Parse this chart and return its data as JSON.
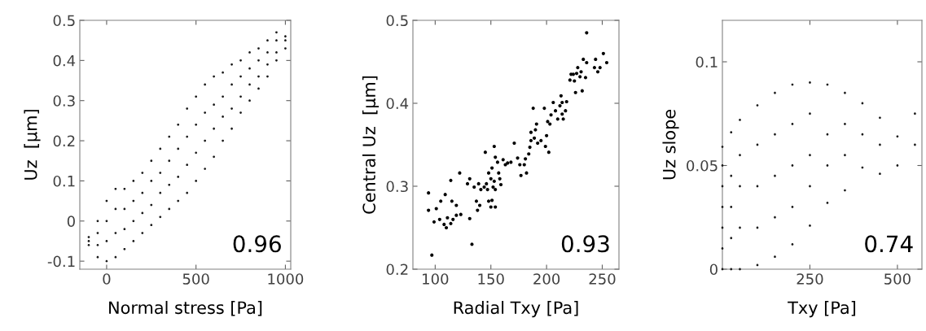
{
  "chart_data": [
    {
      "type": "scatter",
      "xlabel": "Normal stress [Pa]",
      "ylabel": "Uz  [µm]",
      "annotations": [
        "0.96"
      ],
      "marker": "circle",
      "grid": false,
      "xlim": [
        -150,
        1030
      ],
      "ylim": [
        -0.12,
        0.5
      ],
      "xticks": [
        0,
        500,
        1000
      ],
      "yticks": [
        -0.1,
        0,
        0.1,
        0.2,
        0.3,
        0.4,
        0.5
      ],
      "x": [
        -100,
        -100,
        -100,
        -50,
        -50,
        -50,
        -50,
        0,
        0,
        0,
        0,
        50,
        50,
        50,
        50,
        100,
        100,
        100,
        100,
        150,
        150,
        150,
        150,
        200,
        200,
        200,
        200,
        250,
        250,
        250,
        250,
        300,
        300,
        300,
        300,
        350,
        350,
        350,
        350,
        400,
        400,
        400,
        400,
        450,
        450,
        450,
        450,
        500,
        500,
        500,
        500,
        550,
        550,
        550,
        550,
        600,
        600,
        600,
        600,
        650,
        650,
        650,
        650,
        700,
        700,
        700,
        700,
        750,
        750,
        750,
        750,
        800,
        800,
        800,
        800,
        850,
        850,
        850,
        850,
        900,
        900,
        900,
        900,
        950,
        950,
        950,
        950,
        1000,
        1000,
        1000
      ],
      "series": [
        {
          "color": "#1a1a1a",
          "values": [
            -0.06,
            -0.05,
            -0.04,
            -0.09,
            -0.06,
            -0.03,
            0.0,
            -0.1,
            -0.05,
            0.0,
            0.05,
            -0.09,
            -0.03,
            0.03,
            0.08,
            -0.07,
            -0.02,
            0.03,
            0.08,
            -0.05,
            0.0,
            0.05,
            0.1,
            -0.03,
            0.02,
            0.07,
            0.12,
            -0.01,
            0.04,
            0.1,
            0.15,
            0.01,
            0.07,
            0.12,
            0.18,
            0.03,
            0.09,
            0.15,
            0.21,
            0.05,
            0.11,
            0.18,
            0.24,
            0.07,
            0.14,
            0.21,
            0.28,
            0.1,
            0.17,
            0.24,
            0.31,
            0.13,
            0.2,
            0.27,
            0.34,
            0.16,
            0.23,
            0.29,
            0.36,
            0.2,
            0.26,
            0.31,
            0.37,
            0.23,
            0.28,
            0.34,
            0.39,
            0.27,
            0.31,
            0.36,
            0.4,
            0.3,
            0.34,
            0.38,
            0.42,
            0.33,
            0.36,
            0.4,
            0.43,
            0.36,
            0.39,
            0.42,
            0.45,
            0.4,
            0.42,
            0.45,
            0.47,
            0.43,
            0.45,
            0.46
          ]
        }
      ]
    },
    {
      "type": "scatter",
      "xlabel": "Radial Txy [Pa]",
      "ylabel": "Central Uz  [µm]",
      "annotations": [
        "0.93"
      ],
      "marker": "circle",
      "grid": false,
      "xlim": [
        80,
        265
      ],
      "ylim": [
        0.2,
        0.5
      ],
      "xticks": [
        100,
        150,
        200,
        250
      ],
      "yticks": [
        0.2,
        0.3,
        0.4,
        0.5
      ],
      "x": [
        94,
        94,
        97,
        99,
        101,
        104,
        105,
        108,
        110,
        109,
        111,
        114,
        114,
        115,
        116,
        119,
        119,
        122,
        123,
        129,
        131,
        131,
        133,
        135,
        137,
        138,
        140,
        139,
        141,
        144,
        146,
        147,
        145,
        148,
        150,
        151,
        148,
        150,
        151,
        152,
        153,
        154,
        153,
        154,
        154,
        156,
        157,
        158,
        159,
        161,
        163,
        165,
        168,
        171,
        174,
        176,
        177,
        180,
        181,
        182,
        184,
        185,
        186,
        188,
        186,
        189,
        190,
        191,
        192,
        195,
        199,
        200,
        198,
        201,
        203,
        202,
        204,
        206,
        208,
        210,
        212,
        214,
        215,
        217,
        213,
        214,
        218,
        221,
        222,
        224,
        225,
        226,
        227,
        228,
        230,
        231,
        232,
        233,
        235,
        236,
        236,
        244,
        243,
        246,
        248,
        251,
        254
      ],
      "series": [
        {
          "color": "#000000",
          "values": [
            0.292,
            0.271,
            0.217,
            0.257,
            0.273,
            0.26,
            0.282,
            0.254,
            0.25,
            0.29,
            0.262,
            0.255,
            0.307,
            0.282,
            0.26,
            0.265,
            0.277,
            0.316,
            0.266,
            0.303,
            0.261,
            0.309,
            0.23,
            0.299,
            0.282,
            0.271,
            0.277,
            0.303,
            0.296,
            0.299,
            0.303,
            0.296,
            0.341,
            0.282,
            0.275,
            0.283,
            0.316,
            0.309,
            0.322,
            0.299,
            0.306,
            0.296,
            0.348,
            0.335,
            0.275,
            0.329,
            0.316,
            0.309,
            0.302,
            0.332,
            0.326,
            0.328,
            0.329,
            0.352,
            0.334,
            0.326,
            0.313,
            0.326,
            0.333,
            0.316,
            0.339,
            0.347,
            0.355,
            0.394,
            0.365,
            0.358,
            0.368,
            0.375,
            0.352,
            0.355,
            0.348,
            0.361,
            0.394,
            0.378,
            0.375,
            0.341,
            0.386,
            0.401,
            0.391,
            0.381,
            0.397,
            0.387,
            0.381,
            0.391,
            0.409,
            0.401,
            0.402,
            0.428,
            0.435,
            0.435,
            0.427,
            0.413,
            0.436,
            0.443,
            0.432,
            0.438,
            0.415,
            0.453,
            0.431,
            0.485,
            0.449,
            0.453,
            0.443,
            0.438,
            0.443,
            0.46,
            0.449
          ]
        }
      ]
    },
    {
      "type": "scatter",
      "xlabel": "Txy [Pa]",
      "ylabel": "Uz slope",
      "annotations": [
        "0.74"
      ],
      "marker": "circle",
      "grid": false,
      "xlim": [
        0,
        570
      ],
      "ylim": [
        0,
        0.12
      ],
      "xticks": [
        250,
        500
      ],
      "yticks": [
        0,
        0.05,
        0.1
      ],
      "x": [
        0,
        0,
        0,
        0,
        0,
        0,
        0,
        25,
        25,
        25,
        25,
        25,
        50,
        50,
        50,
        50,
        50,
        100,
        100,
        100,
        100,
        100,
        150,
        150,
        150,
        150,
        150,
        200,
        200,
        200,
        200,
        200,
        250,
        250,
        250,
        250,
        250,
        300,
        300,
        300,
        300,
        350,
        350,
        350,
        350,
        400,
        400,
        400,
        450,
        450,
        450,
        500,
        500,
        550,
        550
      ],
      "series": [
        {
          "color": "#1a1a1a",
          "values": [
            0,
            0.01,
            0.02,
            0.03,
            0.04,
            0.05,
            0.059,
            0,
            0.015,
            0.03,
            0.045,
            0.066,
            0,
            0.02,
            0.04,
            0.055,
            0.072,
            0.002,
            0.02,
            0.04,
            0.06,
            0.079,
            0.006,
            0.025,
            0.045,
            0.065,
            0.085,
            0.012,
            0.03,
            0.05,
            0.07,
            0.089,
            0.021,
            0.04,
            0.055,
            0.075,
            0.09,
            0.032,
            0.05,
            0.065,
            0.089,
            0.038,
            0.055,
            0.07,
            0.085,
            0.049,
            0.065,
            0.08,
            0.046,
            0.06,
            0.073,
            0.05,
            0.064,
            0.06,
            0.075
          ]
        }
      ]
    }
  ]
}
